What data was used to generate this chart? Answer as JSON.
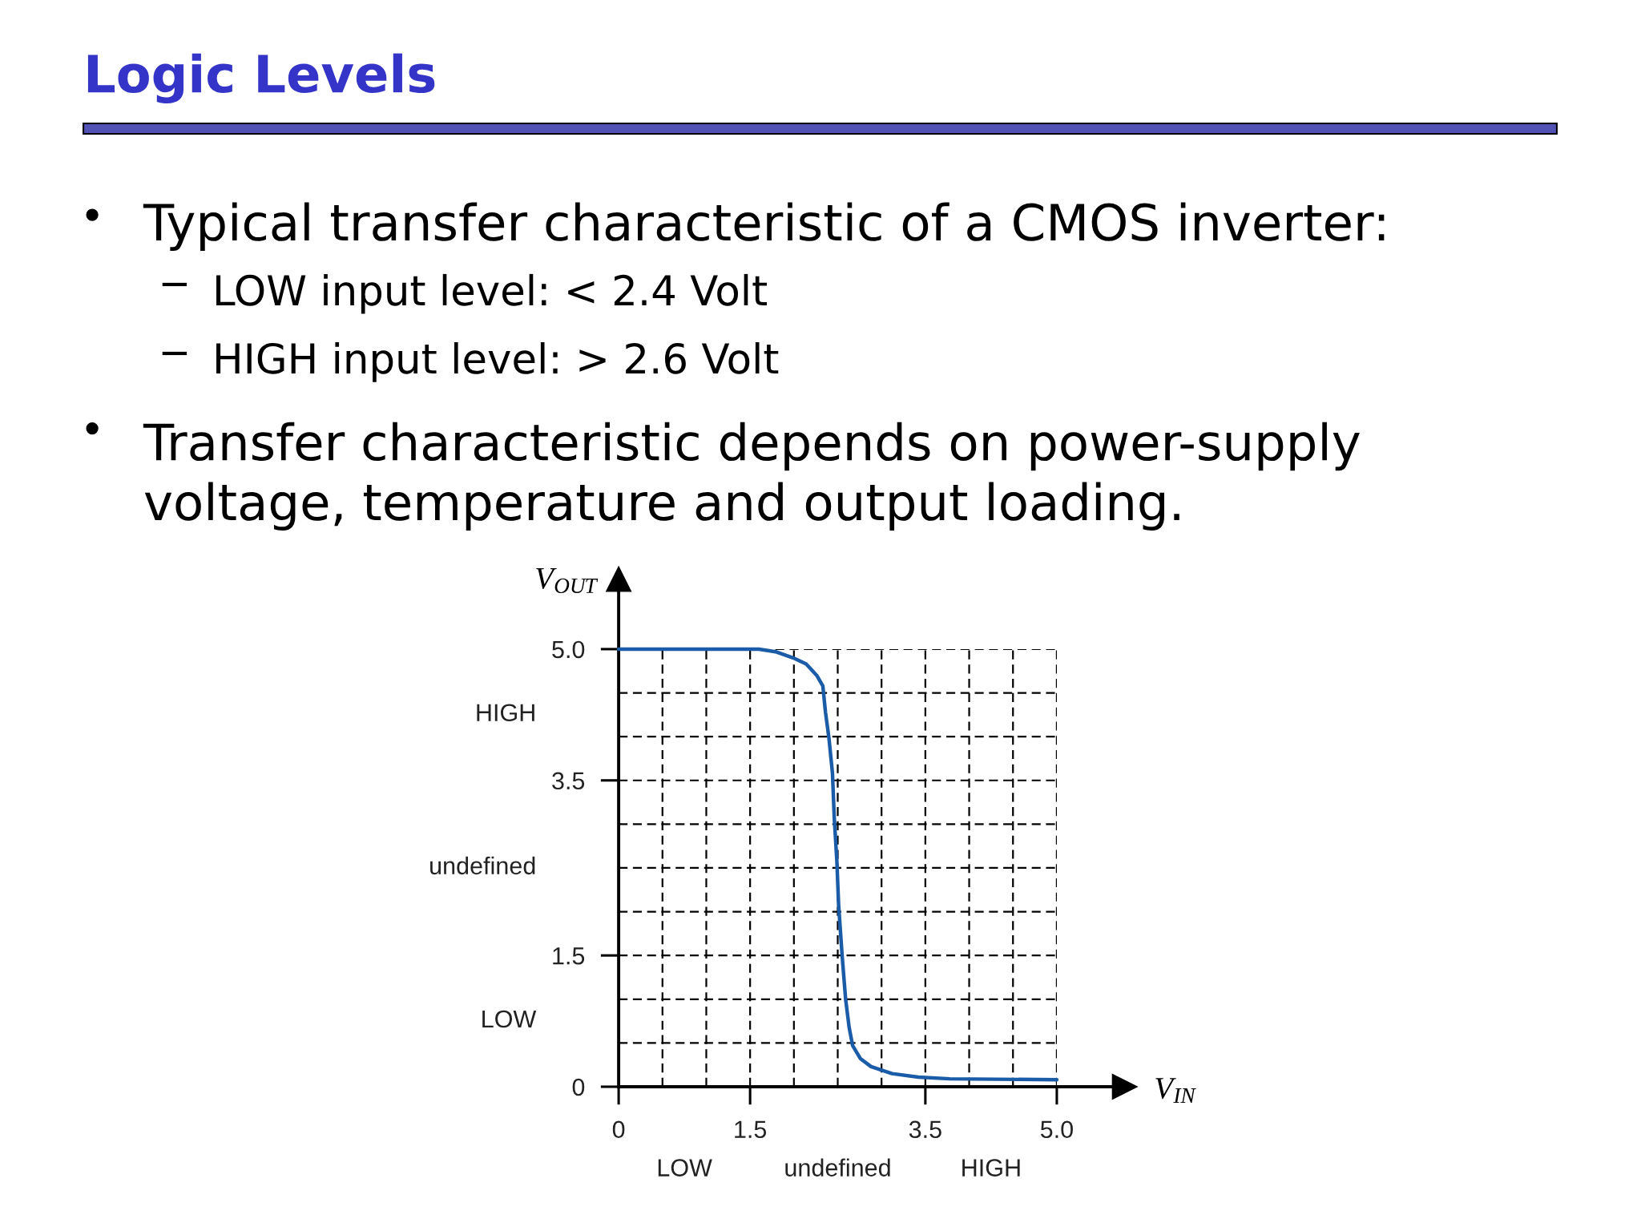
{
  "chart_data": {
    "type": "line",
    "title": "Logic Levels",
    "xlabel": "V$_{IN}$",
    "ylabel": "V$_{OUT}$",
    "annotations": [
      "Typical transfer characteristic of a CMOS inverter:",
      "LOW input level: < 2.4 Volt",
      "HIGH input level: > 2.6 Volt",
      "Transfer characteristic depends on power-supply\nvoltage, temperature and output loading.",
      "LOW",
      "undefined",
      "HIGH",
      "HIGH",
      "undefined",
      "LOW"
    ],
    "x": [
      0,
      1.5,
      1.6,
      1.79,
      1.99,
      2.14,
      2.26,
      2.33,
      2.36,
      2.4,
      2.44,
      2.46,
      2.49,
      2.51,
      2.55,
      2.59,
      2.63,
      2.67,
      2.76,
      2.88,
      3.12,
      3.42,
      3.78,
      5.0
    ],
    "series": [
      {
        "color": "#1a5ca8",
        "values": [
          5,
          5,
          5,
          4.97,
          4.9,
          4.83,
          4.7,
          4.58,
          4.28,
          3.98,
          3.58,
          3.08,
          2.58,
          2.08,
          1.5,
          1.0,
          0.68,
          0.47,
          0.32,
          0.23,
          0.15,
          0.11,
          0.09,
          0.08
        ]
      }
    ],
    "xlim": [
      0,
      5
    ],
    "ylim": [
      0,
      5
    ],
    "xticks": [
      0,
      {
        "value": 0.5,
        "label": null
      },
      {
        "value": 1,
        "label": null
      },
      1.5,
      {
        "value": 2,
        "label": null
      },
      {
        "value": 2.5,
        "label": null
      },
      {
        "value": 3,
        "label": null
      },
      3.5,
      {
        "value": 4,
        "label": null
      },
      {
        "value": 4.5,
        "label": null
      },
      {
        "value": 5,
        "label": "5.0"
      }
    ],
    "yticks": [
      0,
      {
        "value": 0.5,
        "label": null
      },
      {
        "value": 1,
        "label": null
      },
      1.5,
      {
        "value": 2,
        "label": null
      },
      {
        "value": 2.5,
        "label": null
      },
      {
        "value": 3,
        "label": null
      },
      3.5,
      {
        "value": 4,
        "label": null
      },
      {
        "value": 4.5,
        "label": null
      },
      {
        "value": 5,
        "label": "5.0"
      }
    ],
    "grid": true
  }
}
